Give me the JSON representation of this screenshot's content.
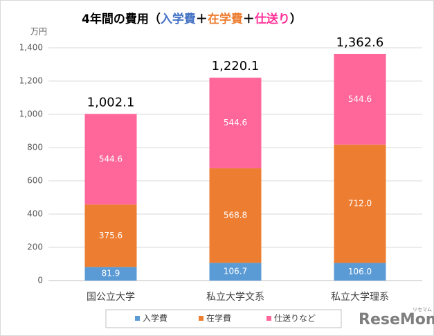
{
  "chart_data": {
    "type": "stacked_bar",
    "title_parts": [
      {
        "text": "4年間の費用（",
        "color": "#000000"
      },
      {
        "text": "入学費",
        "color": "#4472c4"
      },
      {
        "text": "＋",
        "color": "#000000"
      },
      {
        "text": "在学費",
        "color": "#ed7d31"
      },
      {
        "text": "＋",
        "color": "#000000"
      },
      {
        "text": "仕送り",
        "color": "#ff3399"
      },
      {
        "text": "）",
        "color": "#000000"
      }
    ],
    "y_axis_label": "万円",
    "categories": [
      "国公立大学",
      "私立大学文系",
      "私立大学理系"
    ],
    "series": [
      {
        "name": "入学費",
        "color": "#5b9bd5",
        "values": [
          81.9,
          106.7,
          106.0
        ],
        "value_labels": [
          "81.9",
          "106.7",
          "106.0"
        ]
      },
      {
        "name": "在学費",
        "color": "#ed7d31",
        "values": [
          375.6,
          568.8,
          712.0
        ],
        "value_labels": [
          "375.6",
          "568.8",
          "712.0"
        ]
      },
      {
        "name": "仕送りなど",
        "color": "#ff6699",
        "values": [
          544.6,
          544.6,
          544.6
        ],
        "value_labels": [
          "544.6",
          "544.6",
          "544.6"
        ]
      }
    ],
    "totals": [
      1002.1,
      1220.1,
      1362.6
    ],
    "total_labels": [
      "1,002.1",
      "1,220.1",
      "1,362.6"
    ],
    "ylim": [
      0,
      1400
    ],
    "yticks": [
      0,
      200,
      400,
      600,
      800,
      {
        "value": 1000,
        "label": "1,000"
      },
      {
        "value": 1200,
        "label": "1,200"
      },
      {
        "value": 1400,
        "label": "1,400"
      }
    ],
    "grid": true,
    "legend": "bottom",
    "watermark": "ReseMom",
    "watermark_sub": "リセマム"
  }
}
